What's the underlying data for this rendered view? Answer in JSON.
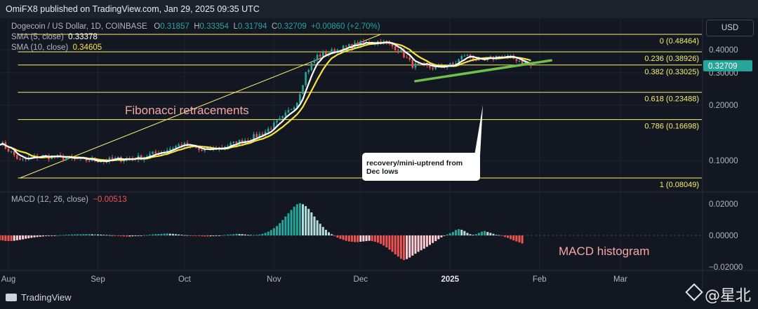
{
  "header": {
    "publisher": "OmiFX8 published on TradingView.com, Jan 29, 2025 09:35 UTC"
  },
  "legend": {
    "symbol": "Dogecoin / US Dollar, 1D, COINBASE",
    "ohlc": {
      "o_label": "O",
      "o": "0.31857",
      "h_label": "H",
      "h": "0.33354",
      "l_label": "L",
      "l": "0.31794",
      "c_label": "C",
      "c": "0.32709",
      "change": "+0.00860 (+2.70%)"
    },
    "sma5": {
      "label": "SMA (5, close)",
      "value": "0.33378"
    },
    "sma10": {
      "label": "SMA (10, close)",
      "value": "0.34605"
    },
    "macd": {
      "label": "MACD (12, 26, close)",
      "value": "−0.00513"
    }
  },
  "currency_button": "USD",
  "footer": {
    "brand": "TradingView",
    "watermark": "@星北"
  },
  "colors": {
    "background": "#131722",
    "bull": "#26a69a",
    "bear": "#ef5350",
    "fib": "#f7f06b",
    "sma5": "#ffffff",
    "sma10": "#f9e43f",
    "trendline": "#6fc04a",
    "macd_pos_strong": "#26a69a",
    "macd_pos_weak": "#b2dfdb",
    "macd_neg_strong": "#ef5350",
    "macd_neg_weak": "#ffcdd2"
  },
  "chart_data": [
    {
      "type": "candlestick",
      "price_scale": "log",
      "y_ticks": [
        "0.40000",
        "0.30000",
        "0.20000",
        "0.10000"
      ],
      "x_ticks": [
        "Aug",
        "Sep",
        "Oct",
        "Nov",
        "Dec",
        "2025",
        "Feb",
        "Mar"
      ],
      "last_price": 0.32709,
      "fib_levels": [
        {
          "ratio": "0",
          "label": "0 (0.48464)",
          "price": 0.48464
        },
        {
          "ratio": "0.236",
          "label": "0.236 (0.38926)",
          "price": 0.38926
        },
        {
          "ratio": "0.382",
          "label": "0.382 (0.33025)",
          "price": 0.33025
        },
        {
          "ratio": "0.618",
          "label": "0.618 (0.23488)",
          "price": 0.23488
        },
        {
          "ratio": "0.786",
          "label": "0.786 (0.16698)",
          "price": 0.16698
        },
        {
          "ratio": "1",
          "label": "1 (0.08049)",
          "price": 0.08049
        }
      ],
      "fib_anchor": {
        "start_date": "2024-08-05",
        "start_price": 0.08049,
        "end_date": "2024-12-08",
        "end_price": 0.48464
      },
      "trendline": {
        "start_date": "2024-12-20",
        "start_price": 0.27,
        "end_date": "2025-02-05",
        "end_price": 0.35
      },
      "annotations": [
        {
          "text": "Fibonacci retracements"
        },
        {
          "text": "recovery/mini-uptrend from Dec lows"
        },
        {
          "text": "MACD histogram"
        }
      ],
      "close_path": [
        [
          "2024-07-29",
          0.126
        ],
        [
          "2024-08-05",
          0.1
        ],
        [
          "2024-08-12",
          0.106
        ],
        [
          "2024-08-19",
          0.104
        ],
        [
          "2024-08-26",
          0.101
        ],
        [
          "2024-09-02",
          0.1
        ],
        [
          "2024-09-09",
          0.102
        ],
        [
          "2024-09-16",
          0.104
        ],
        [
          "2024-09-23",
          0.112
        ],
        [
          "2024-09-30",
          0.123
        ],
        [
          "2024-10-07",
          0.113
        ],
        [
          "2024-10-14",
          0.118
        ],
        [
          "2024-10-21",
          0.128
        ],
        [
          "2024-10-28",
          0.14
        ],
        [
          "2024-11-04",
          0.17
        ],
        [
          "2024-11-09",
          0.21
        ],
        [
          "2024-11-12",
          0.3
        ],
        [
          "2024-11-16",
          0.37
        ],
        [
          "2024-11-23",
          0.4
        ],
        [
          "2024-11-30",
          0.43
        ],
        [
          "2024-12-08",
          0.445
        ],
        [
          "2024-12-14",
          0.405
        ],
        [
          "2024-12-19",
          0.33
        ],
        [
          "2024-12-26",
          0.32
        ],
        [
          "2025-01-02",
          0.33
        ],
        [
          "2025-01-06",
          0.375
        ],
        [
          "2025-01-12",
          0.345
        ],
        [
          "2025-01-18",
          0.37
        ],
        [
          "2025-01-24",
          0.355
        ],
        [
          "2025-01-29",
          0.327
        ]
      ]
    },
    {
      "type": "bar",
      "title": "MACD (12, 26, close)",
      "y_ticks": [
        "0.02000",
        "0.00000",
        "−0.02000"
      ],
      "ylim": [
        -0.0165,
        0.0215
      ],
      "values": [
        -0.003,
        -0.0032,
        -0.0035,
        -0.0036,
        -0.0036,
        -0.0034,
        -0.0031,
        -0.0028,
        -0.0025,
        -0.0021,
        -0.0018,
        -0.0015,
        -0.0012,
        -0.001,
        -0.0008,
        -0.0006,
        -0.0004,
        -0.0003,
        -0.0002,
        -0.0001,
        0.0001,
        0.0002,
        0.0003,
        0.0004,
        0.0005,
        0.0006,
        0.0006,
        0.0007,
        0.0007,
        0.0008,
        0.0008,
        0.0008,
        0.0007,
        0.0007,
        0.0006,
        0.0005,
        0.0004,
        0.0003,
        0.0002,
        0.0001,
        -0.0002,
        -0.0004,
        -0.0005,
        -0.0006,
        -0.0007,
        -0.0006,
        -0.0005,
        -0.0004,
        -0.0003,
        -0.0002,
        0.0001,
        0.0002,
        0.0004,
        0.0006,
        0.0008,
        0.0009,
        0.001,
        0.0011,
        0.0012,
        0.0011,
        0.001,
        0.0008,
        0.0006,
        0.0004,
        0.0002,
        0.0001,
        -0.0001,
        -0.0002,
        -0.0003,
        -0.0004,
        -0.0005,
        -0.0006,
        -0.0006,
        -0.0005,
        -0.0004,
        -0.0003,
        -0.0002,
        0.0001,
        0.0003,
        0.0005,
        0.0006,
        0.0008,
        0.001,
        0.0009,
        0.0008,
        0.0006,
        0.0004,
        0.0003,
        0.0003,
        0.0004,
        0.0006,
        0.001,
        0.0016,
        0.0024,
        0.0034,
        0.0046,
        0.006,
        0.0078,
        0.0098,
        0.012,
        0.014,
        0.0162,
        0.0182,
        0.0198,
        0.0204,
        0.0198,
        0.0186,
        0.0168,
        0.0146,
        0.012,
        0.0096,
        0.0074,
        0.0054,
        0.0036,
        0.002,
        0.0008,
        -0.0004,
        -0.0014,
        -0.0022,
        -0.0028,
        -0.0034,
        -0.0038,
        -0.004,
        -0.0042,
        -0.0042,
        -0.004,
        -0.0038,
        -0.0036,
        -0.0034,
        -0.0036,
        -0.004,
        -0.0046,
        -0.0054,
        -0.0064,
        -0.0076,
        -0.009,
        -0.0104,
        -0.012,
        -0.0134,
        -0.0148,
        -0.0156,
        -0.015,
        -0.014,
        -0.0128,
        -0.0116,
        -0.0104,
        -0.0094,
        -0.0084,
        -0.0072,
        -0.006,
        -0.0048,
        -0.0036,
        -0.0024,
        -0.0012,
        -0.0002,
        0.0006,
        0.0014,
        0.0022,
        0.0034,
        0.004,
        0.0036,
        0.0028,
        0.0016,
        0.0008,
        0.0004,
        0.0008,
        0.0016,
        0.0024,
        0.0028,
        0.0022,
        0.0016,
        0.001,
        0.0004,
        0.0002,
        -0.0002,
        -0.001,
        -0.0016,
        -0.0024,
        -0.0032,
        -0.0038,
        -0.0044,
        -0.0051
      ]
    }
  ]
}
